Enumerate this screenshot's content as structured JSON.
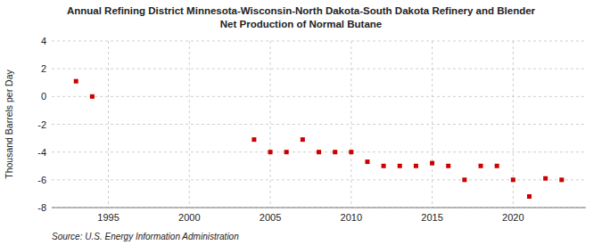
{
  "chart_data": {
    "type": "scatter",
    "title": "Annual Refining District Minnesota-Wisconsin-North Dakota-South Dakota Refinery and Blender",
    "subtitle": "Net Production of Normal Butane",
    "y_label": "Thousand Barrels per Day",
    "source": "Source: U.S. Energy Information Administration",
    "x": [
      1993,
      1994,
      2004,
      2005,
      2006,
      2007,
      2008,
      2009,
      2010,
      2011,
      2012,
      2013,
      2014,
      2015,
      2016,
      2017,
      2018,
      2019,
      2020,
      2021,
      2022,
      2023
    ],
    "values": [
      1.1,
      0.0,
      -3.1,
      -4.0,
      -4.0,
      -3.1,
      -4.0,
      -4.0,
      -4.0,
      -4.7,
      -5.0,
      -5.0,
      -5.0,
      -4.8,
      -5.0,
      -6.0,
      -5.0,
      -5.0,
      -6.0,
      -7.2,
      -5.9,
      -6.0
    ],
    "color": "#cc0000",
    "marker": "square",
    "xlim": [
      1991.5,
      2024.5
    ],
    "ylim": [
      -8,
      4
    ],
    "xticks": [
      1995,
      2000,
      2005,
      2010,
      2015,
      2020
    ],
    "yticks": [
      -8,
      -6,
      -4,
      -2,
      0,
      2,
      4
    ],
    "grid": true
  }
}
